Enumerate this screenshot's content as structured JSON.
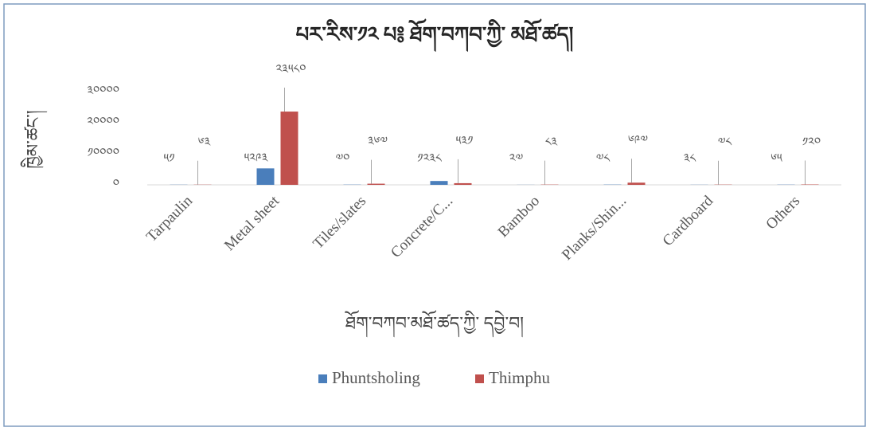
{
  "chart_data": {
    "type": "bar",
    "title": "པར་རིས་༡༢ པ༔ ཐོག་བཀབ་ཀྱི་ མཐོ་ཚད།",
    "y_label": "ཁྱིམ་ཚང་།",
    "x_label": "ཐོག་བཀབ་མཐོ་ཚད་ཀྱི་ དབྱེ་བ།",
    "categories": [
      "Tarpaulin",
      "Metal sheet",
      "Tiles/slates",
      "Concrete/C...",
      "Bamboo",
      "Planks/Shin...",
      "Cardboard",
      "Others"
    ],
    "series": [
      {
        "name": "Phuntsholing",
        "color": "#4a7ebb",
        "values": [
          51,
          5293,
          70,
          1238,
          27,
          78,
          38,
          65
        ],
        "value_labels": [
          "༥༡",
          "༥༢༩༣",
          "༧༠",
          "༡༢༣༨",
          "༢༧",
          "༧༨",
          "༣༨",
          "༦༥"
        ]
      },
      {
        "name": "Thimphu",
        "color": "#c0504d",
        "values": [
          63,
          23580,
          367,
          531,
          83,
          697,
          78,
          120
        ],
        "value_labels": [
          "༦༣",
          "༢༣༥༨༠",
          "༣༦༧",
          "༥༣༡",
          "༨༣",
          "༦༩༧",
          "༧༨",
          "༡༢༠"
        ]
      }
    ],
    "ylim": [
      0,
      30000
    ],
    "yticks": [
      {
        "value": 0,
        "label": "༠"
      },
      {
        "value": 10000,
        "label": "༡༠༠༠༠"
      },
      {
        "value": 20000,
        "label": "༢༠༠༠༠"
      },
      {
        "value": 30000,
        "label": "༣༠༠༠༠"
      }
    ],
    "legend": "bottom"
  }
}
